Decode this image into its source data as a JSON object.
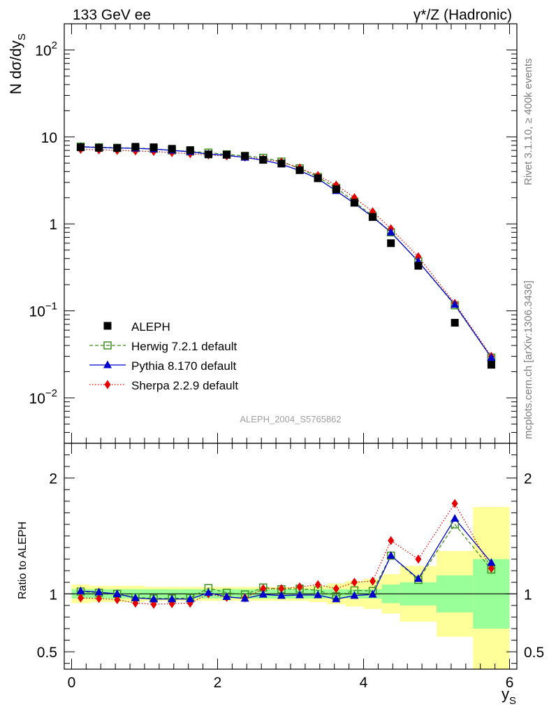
{
  "chart_data": {
    "type": "scatter",
    "title_left": "133 GeV ee",
    "title_right": "γ*/Z (Hadronic)",
    "ylabel_main": "N dσ/dy",
    "ylabel_main_sub": "S",
    "ylabel_ratio": "Ratio to ALEPH",
    "xlabel": "y",
    "xlabel_sub": "S",
    "side_label_rivet": "Rivet 3.1.10, ≥ 400k events",
    "side_label_mcplots": "mcplots.cern.ch [arXiv:1306.3436]",
    "analysis_id": "ALEPH_2004_S5765862",
    "xlim": [
      -0.1,
      6.1
    ],
    "ylim_main": [
      0.003,
      200
    ],
    "ylim_ratio": [
      0.35,
      2.3
    ],
    "x_ticks": [
      "0",
      "2",
      "4",
      "6"
    ],
    "y_ticks_main": [
      {
        "value": 0.01,
        "base": "10",
        "exp": "−2"
      },
      {
        "value": 0.1,
        "base": "10",
        "exp": "−1"
      },
      {
        "value": 1,
        "base": "1",
        "exp": ""
      },
      {
        "value": 10,
        "base": "10",
        "exp": ""
      },
      {
        "value": 100,
        "base": "10",
        "exp": "2"
      }
    ],
    "y_ticks_ratio": [
      "0.5",
      "1",
      "2"
    ],
    "x": [
      0.125,
      0.375,
      0.625,
      0.875,
      1.125,
      1.375,
      1.625,
      1.875,
      2.125,
      2.375,
      2.625,
      2.875,
      3.125,
      3.375,
      3.625,
      3.875,
      4.125,
      4.375,
      4.75,
      5.25,
      5.75
    ],
    "bin_edges": [
      0,
      0.25,
      0.5,
      0.75,
      1.0,
      1.25,
      1.5,
      1.75,
      2.0,
      2.25,
      2.5,
      2.75,
      3.0,
      3.25,
      3.5,
      3.75,
      4.0,
      4.25,
      4.5,
      5.0,
      5.5,
      6.0
    ],
    "band_inner": [
      0.04,
      0.04,
      0.04,
      0.04,
      0.04,
      0.04,
      0.04,
      0.04,
      0.04,
      0.04,
      0.04,
      0.04,
      0.04,
      0.04,
      0.04,
      0.04,
      0.04,
      0.08,
      0.1,
      0.16,
      0.3
    ],
    "band_outer": [
      0.08,
      0.07,
      0.07,
      0.07,
      0.06,
      0.06,
      0.06,
      0.06,
      0.06,
      0.06,
      0.06,
      0.06,
      0.06,
      0.07,
      0.09,
      0.11,
      0.13,
      0.17,
      0.24,
      0.37,
      0.75
    ],
    "series": [
      {
        "name": "ALEPH",
        "color": "#000000",
        "marker": "square-filled",
        "line": "none",
        "values": [
          7.6,
          7.5,
          7.45,
          7.7,
          7.6,
          7.3,
          7.05,
          6.3,
          6.25,
          6.05,
          5.45,
          4.95,
          4.15,
          3.35,
          2.5,
          1.75,
          1.2,
          0.6,
          0.33,
          0.073,
          0.024
        ],
        "ratio": [
          1,
          1,
          1,
          1,
          1,
          1,
          1,
          1,
          1,
          1,
          1,
          1,
          1,
          1,
          1,
          1,
          1,
          1,
          1,
          1,
          1
        ]
      },
      {
        "name": "Herwig 7.2.1 default",
        "color": "#3f8f1f",
        "marker": "square-open",
        "line": "dashed",
        "values": [
          7.75,
          7.6,
          7.5,
          7.45,
          7.3,
          7.0,
          6.8,
          6.6,
          6.3,
          6.05,
          5.75,
          5.2,
          4.35,
          3.45,
          2.6,
          1.8,
          1.23,
          0.8,
          0.37,
          0.116,
          0.029
        ],
        "ratio": [
          1.02,
          1.01,
          1.0,
          0.97,
          0.96,
          0.96,
          0.965,
          1.05,
          1.01,
          0.995,
          1.055,
          1.04,
          1.045,
          1.03,
          0.98,
          1.03,
          1.025,
          1.33,
          1.12,
          1.6,
          1.21
        ]
      },
      {
        "name": "Pythia 8.170 default",
        "color": "#0000cc",
        "marker": "triangle-filled",
        "line": "solid",
        "values": [
          7.7,
          7.55,
          7.45,
          7.4,
          7.25,
          7.0,
          6.75,
          6.35,
          6.15,
          5.8,
          5.4,
          4.85,
          4.1,
          3.3,
          2.4,
          1.72,
          1.2,
          0.8,
          0.37,
          0.118,
          0.029
        ],
        "ratio": [
          1.025,
          1.015,
          1.0,
          0.965,
          0.955,
          0.955,
          0.955,
          1.01,
          0.975,
          0.96,
          0.995,
          0.985,
          0.99,
          0.99,
          0.955,
          0.985,
          0.995,
          1.33,
          1.13,
          1.65,
          1.27
        ]
      },
      {
        "name": "Sherpa 2.2.9 default",
        "color": "#e60000",
        "marker": "diamond-filled",
        "line": "dotted",
        "values": [
          7.2,
          7.1,
          7.0,
          6.9,
          6.8,
          6.6,
          6.4,
          6.2,
          6.05,
          5.85,
          5.55,
          5.15,
          4.4,
          3.6,
          2.8,
          2.0,
          1.38,
          0.88,
          0.42,
          0.122,
          0.03
        ],
        "ratio": [
          0.965,
          0.96,
          0.95,
          0.92,
          0.91,
          0.915,
          0.92,
          1.0,
          0.97,
          0.965,
          1.045,
          1.045,
          1.06,
          1.08,
          1.045,
          1.1,
          1.11,
          1.46,
          1.3,
          1.78,
          1.22
        ]
      }
    ]
  }
}
